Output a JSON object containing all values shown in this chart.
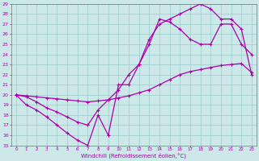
{
  "xlabel": "Windchill (Refroidissement éolien,°C)",
  "xlim": [
    -0.5,
    23.5
  ],
  "ylim": [
    15,
    29
  ],
  "xticks": [
    0,
    1,
    2,
    3,
    4,
    5,
    6,
    7,
    8,
    9,
    10,
    11,
    12,
    13,
    14,
    15,
    16,
    17,
    18,
    19,
    20,
    21,
    22,
    23
  ],
  "yticks": [
    15,
    16,
    17,
    18,
    19,
    20,
    21,
    22,
    23,
    24,
    25,
    26,
    27,
    28,
    29
  ],
  "bg_color": "#cce8e8",
  "line_color": "#aa00aa",
  "grid_color": "#99cccc",
  "line1_x": [
    0,
    1,
    2,
    3,
    4,
    5,
    6,
    7,
    8,
    9,
    10,
    11,
    12,
    13,
    14,
    15,
    16,
    17,
    18,
    19,
    20,
    21,
    22,
    23
  ],
  "line1_y": [
    20,
    19,
    18.5,
    17.8,
    17,
    16.2,
    15.5,
    15,
    18,
    16,
    21,
    21,
    23,
    25,
    27.5,
    27.2,
    26.5,
    25.5,
    25,
    25,
    27,
    27,
    25,
    24
  ],
  "line2_x": [
    0,
    1,
    2,
    3,
    4,
    5,
    6,
    7,
    8,
    9,
    10,
    11,
    12,
    13,
    14,
    15,
    16,
    17,
    18,
    19,
    20,
    21,
    22,
    23
  ],
  "line2_y": [
    20,
    19.9,
    19.8,
    19.7,
    19.6,
    19.5,
    19.4,
    19.3,
    19.4,
    19.5,
    19.7,
    19.9,
    20.2,
    20.5,
    21.0,
    21.5,
    22.0,
    22.3,
    22.5,
    22.7,
    22.9,
    23.0,
    23.1,
    22.2
  ],
  "line3_x": [
    0,
    1,
    2,
    3,
    4,
    5,
    6,
    7,
    8,
    9,
    10,
    11,
    12,
    13,
    14,
    15,
    16,
    17,
    18,
    19,
    20,
    21,
    22,
    23
  ],
  "line3_y": [
    20,
    19.8,
    19.3,
    18.7,
    18.3,
    17.8,
    17.3,
    17.0,
    18.5,
    19.5,
    20.5,
    22.0,
    23.0,
    25.5,
    27.0,
    27.5,
    28.0,
    28.5,
    29.0,
    28.5,
    27.5,
    27.5,
    26.5,
    22
  ]
}
